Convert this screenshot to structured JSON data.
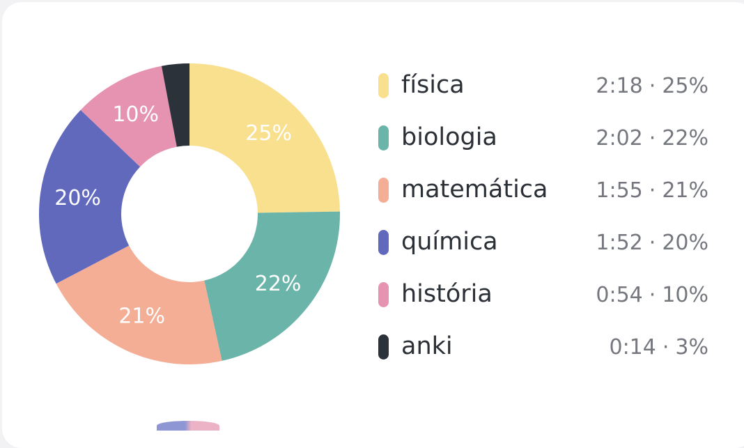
{
  "chart_data": {
    "type": "pie",
    "categories": [
      "física",
      "biologia",
      "matemática",
      "química",
      "história",
      "anki"
    ],
    "values": [
      25,
      22,
      21,
      20,
      10,
      3
    ],
    "slice_labels": [
      "25%",
      "22%",
      "21%",
      "20%",
      "10%",
      ""
    ],
    "colors": [
      "#f8e08f",
      "#6bb4aa",
      "#f3ae95",
      "#6169bd",
      "#e693b1",
      "#2b323a"
    ],
    "legend_placement": "right"
  },
  "legend": {
    "items": [
      {
        "label": "física",
        "time": "2:18",
        "percent": "25%",
        "color": "#f8e08f"
      },
      {
        "label": "biologia",
        "time": "2:02",
        "percent": "22%",
        "color": "#6bb4aa"
      },
      {
        "label": "matemática",
        "time": "1:55",
        "percent": "21%",
        "color": "#f3ae95"
      },
      {
        "label": "química",
        "time": "1:52",
        "percent": "20%",
        "color": "#6169bd"
      },
      {
        "label": "história",
        "time": "0:54",
        "percent": "10%",
        "color": "#e693b1"
      },
      {
        "label": "anki",
        "time": "0:14",
        "percent": "3%",
        "color": "#2b323a"
      }
    ],
    "separator": "·"
  }
}
